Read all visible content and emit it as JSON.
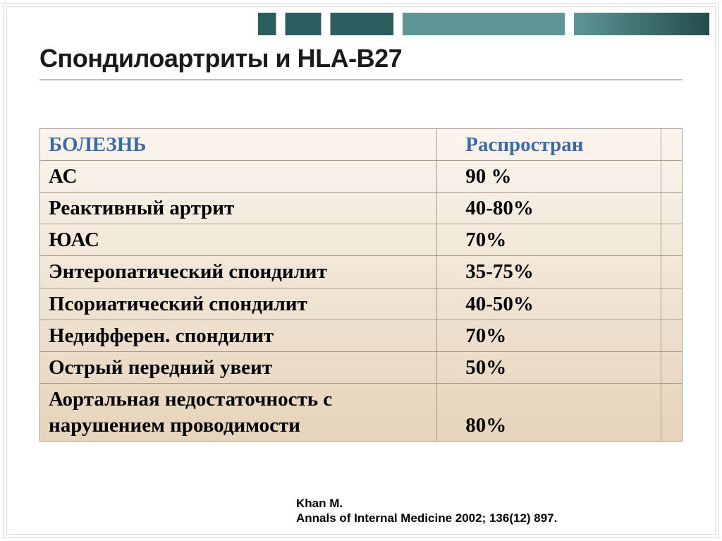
{
  "slide": {
    "title": "Спондилоартриты и HLA-B27"
  },
  "table": {
    "header": {
      "disease": "БОЛЕЗНЬ",
      "prevalence": "Распростран"
    },
    "rows": [
      {
        "disease": "АС",
        "value": "90 %"
      },
      {
        "disease": "Реактивный артрит",
        "value": "40-80%"
      },
      {
        "disease": "ЮАС",
        "value": "70%"
      },
      {
        "disease": "Энтеропатический спондилит",
        "value": "35-75%"
      },
      {
        "disease": "Псориатический спондилит",
        "value": "40-50%"
      },
      {
        "disease": "Недифферен. спондилит",
        "value": "70%"
      },
      {
        "disease": "Острый передний увеит",
        "value": "50%"
      },
      {
        "disease": "Аортальная недостаточность с нарушением проводимости",
        "value": "80%"
      }
    ],
    "colors": {
      "header_text": "#3d6aa6",
      "body_text": "#000000",
      "border": "#a89b87",
      "bg_top": "#faf5ee",
      "bg_bottom": "#e6d4bb"
    },
    "font": {
      "family": "Georgia",
      "size_pt": 22,
      "weight": "bold"
    }
  },
  "citation": {
    "line1": "Khan M.",
    "line2": "Annals of Internal Medicine 2002; 136(12) 897."
  },
  "theme": {
    "accent_dark": "#2b5e5e",
    "accent_light": "#5e9696",
    "frame": "#d8d8d8"
  }
}
